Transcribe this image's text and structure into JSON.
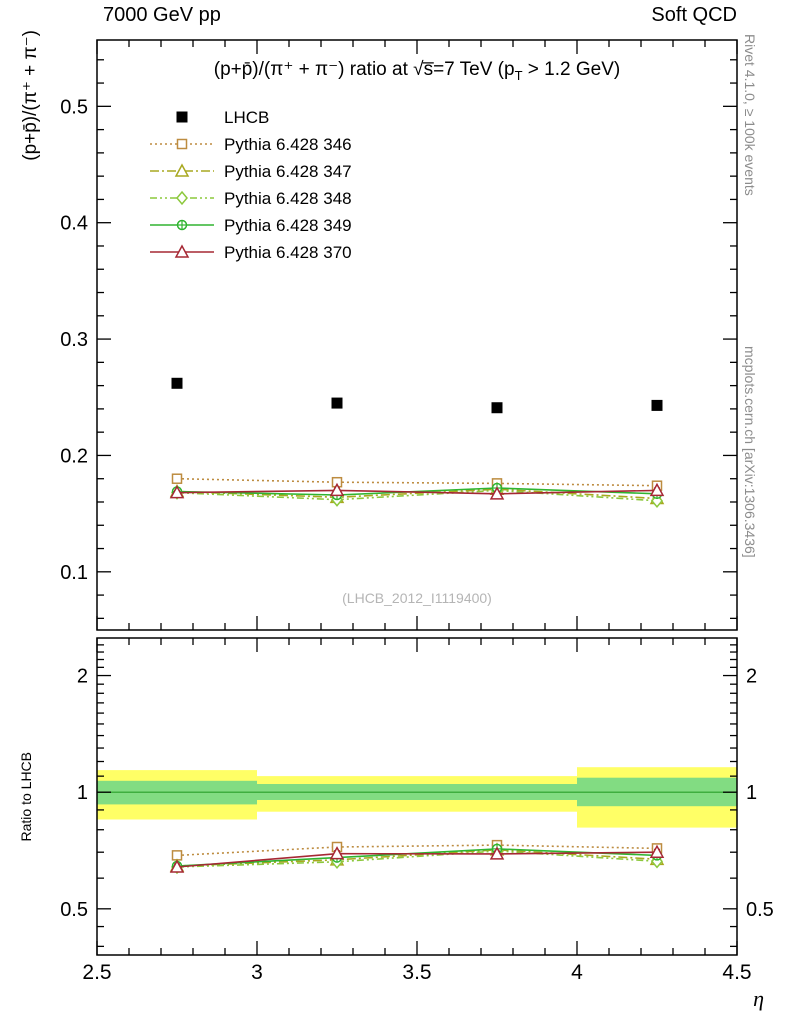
{
  "header": {
    "left": "7000 GeV pp",
    "right": "Soft QCD"
  },
  "side_labels": {
    "top_vertical": "Rivet 4.1.0, ≥ 100k events",
    "bottom_vertical": "mcplots.cern.ch [arXiv:1306.3436]"
  },
  "titles": {
    "main_pre": "(p+p̄)/(π⁺ + π⁻) ratio at √s̅=7 TeV (p",
    "main_sub": "T",
    "main_post": " > 1.2 GeV)",
    "watermark": "(LHCB_2012_I1119400)"
  },
  "axes": {
    "main_ylabel": "(p+p̄)/(π⁺ + π⁻)",
    "ratio_ylabel": "Ratio to LHCB",
    "xlabel": "η"
  },
  "chart_data": {
    "type": "scatter",
    "x": [
      2.75,
      3.25,
      3.75,
      4.25
    ],
    "xlim": [
      2.5,
      4.5
    ],
    "x_ticks": {
      "values": [
        2.5,
        3,
        3.5,
        4,
        4.5
      ],
      "labels": [
        "2.5",
        "3",
        "3.5",
        "4",
        "4.5"
      ],
      "minor_step": 0.1
    },
    "main": {
      "yscale": "linear",
      "ylim": [
        0.05,
        0.557
      ],
      "y_ticks": {
        "values": [
          0.1,
          0.2,
          0.3,
          0.4,
          0.5
        ],
        "labels": [
          "0.1",
          "0.2",
          "0.3",
          "0.4",
          "0.5"
        ],
        "minor_step": 0.02
      },
      "series": [
        {
          "name": "LHCB",
          "values": [
            0.262,
            0.245,
            0.241,
            0.243
          ],
          "err": 0.003,
          "color": "#000000",
          "marker": "square-filled",
          "line": "none"
        },
        {
          "name": "Pythia 6.428 346",
          "values": [
            0.18,
            0.177,
            0.176,
            0.174
          ],
          "err": 0.002,
          "color": "#bd8c40",
          "marker": "square-open",
          "line": "dotted"
        },
        {
          "name": "Pythia 6.428 347",
          "values": [
            0.169,
            0.164,
            0.171,
            0.163
          ],
          "err": 0.002,
          "color": "#a8a820",
          "marker": "triangle-open",
          "line": "dashdot"
        },
        {
          "name": "Pythia 6.428 348",
          "values": [
            0.168,
            0.162,
            0.17,
            0.161
          ],
          "err": 0.002,
          "color": "#8cc83c",
          "marker": "diamond-open",
          "line": "dashdotdot"
        },
        {
          "name": "Pythia 6.428 349",
          "values": [
            0.169,
            0.166,
            0.172,
            0.167
          ],
          "err": 0.002,
          "color": "#30b430",
          "marker": "circle-plus",
          "line": "solid"
        },
        {
          "name": "Pythia 6.428 370",
          "values": [
            0.168,
            0.17,
            0.167,
            0.17
          ],
          "err": 0.002,
          "color": "#a62834",
          "marker": "triangle-open",
          "line": "solid"
        }
      ]
    },
    "ratio": {
      "yscale": "log",
      "ylim": [
        0.38,
        2.5
      ],
      "y_ticks": {
        "values": [
          0.5,
          1,
          2
        ],
        "labels": [
          "0.5",
          "1",
          "2"
        ],
        "minors": [
          0.4,
          0.45,
          0.6,
          0.7,
          0.8,
          0.9,
          1.1,
          1.2,
          1.3,
          1.4,
          1.5,
          1.6,
          1.7,
          1.8,
          1.9,
          2.1,
          2.2,
          2.3,
          2.4
        ]
      },
      "reference_line": 1,
      "bands": [
        {
          "name": "yellow-uncertainty",
          "color": "#ffff66",
          "edges": [
            2.5,
            3.0,
            3.5,
            4.0,
            4.5
          ],
          "lo": [
            0.85,
            0.89,
            0.89,
            0.81
          ],
          "hi": [
            1.14,
            1.1,
            1.1,
            1.16
          ]
        },
        {
          "name": "green-uncertainty",
          "color": "#82dc82",
          "edges": [
            2.5,
            3.0,
            3.5,
            4.0,
            4.5
          ],
          "lo": [
            0.93,
            0.955,
            0.955,
            0.92
          ],
          "hi": [
            1.07,
            1.05,
            1.05,
            1.09
          ]
        }
      ],
      "series": [
        {
          "name": "Pythia 6.428 346",
          "values": [
            0.687,
            0.722,
            0.73,
            0.716
          ],
          "err": 0.012,
          "color": "#bd8c40",
          "marker": "square-open",
          "line": "dotted"
        },
        {
          "name": "Pythia 6.428 347",
          "values": [
            0.645,
            0.669,
            0.71,
            0.671
          ],
          "err": 0.012,
          "color": "#a8a820",
          "marker": "triangle-open",
          "line": "dashdot"
        },
        {
          "name": "Pythia 6.428 348",
          "values": [
            0.641,
            0.661,
            0.705,
            0.663
          ],
          "err": 0.012,
          "color": "#8cc83c",
          "marker": "diamond-open",
          "line": "dashdotdot"
        },
        {
          "name": "Pythia 6.428 349",
          "values": [
            0.645,
            0.678,
            0.714,
            0.687
          ],
          "err": 0.012,
          "color": "#30b430",
          "marker": "circle-plus",
          "line": "solid"
        },
        {
          "name": "Pythia 6.428 370",
          "values": [
            0.641,
            0.694,
            0.693,
            0.7
          ],
          "err": 0.012,
          "color": "#a62834",
          "marker": "triangle-open",
          "line": "solid"
        }
      ]
    }
  }
}
